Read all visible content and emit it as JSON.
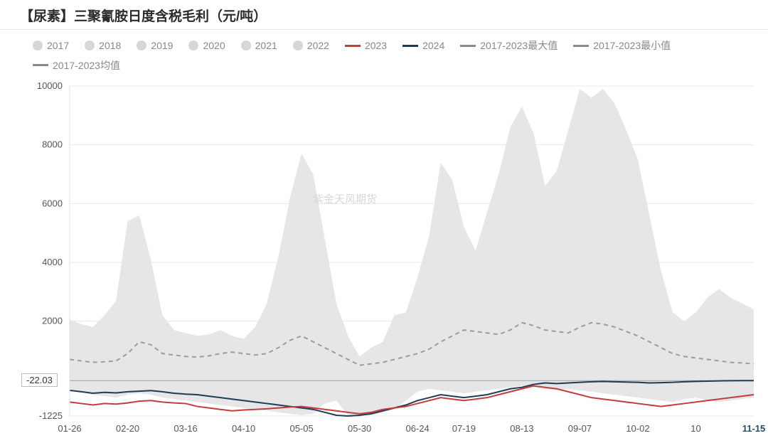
{
  "title": "【尿素】三聚氰胺日度含税毛利（元/吨）",
  "watermark": "紫金天风期货",
  "chart": {
    "type": "line",
    "background_color": "#ffffff",
    "grid_color": "#e9e9e9",
    "ylim": [
      -1225,
      10000
    ],
    "yticks": [
      -1225,
      2000,
      4000,
      6000,
      8000,
      10000
    ],
    "ytick_fontsize": 13,
    "ytick_color": "#555555",
    "xticks": [
      "01-26",
      "02-20",
      "03-16",
      "04-10",
      "05-05",
      "05-30",
      "06-24",
      "07-19",
      "08-13",
      "09-07",
      "10-02",
      "10",
      "11-15"
    ],
    "xtick_highlight_index": 12,
    "xtick_fontsize": 13,
    "xtick_color": "#555555",
    "n_points": 60,
    "value_badge": {
      "text": "-22.03",
      "y_value": -22.03
    },
    "legend": [
      {
        "label": "2017",
        "type": "dot",
        "color": "#d7d7d7"
      },
      {
        "label": "2018",
        "type": "dot",
        "color": "#d7d7d7"
      },
      {
        "label": "2019",
        "type": "dot",
        "color": "#d7d7d7"
      },
      {
        "label": "2020",
        "type": "dot",
        "color": "#d7d7d7"
      },
      {
        "label": "2021",
        "type": "dot",
        "color": "#d7d7d7"
      },
      {
        "label": "2022",
        "type": "dot",
        "color": "#d7d7d7"
      },
      {
        "label": "2023",
        "type": "line",
        "color": "#c63b3b"
      },
      {
        "label": "2024",
        "type": "line",
        "color": "#1f3b55"
      },
      {
        "label": "2017-2023最大值",
        "type": "line",
        "color": "#8a8a8a"
      },
      {
        "label": "2017-2023最小值",
        "type": "line",
        "color": "#8a8a8a"
      },
      {
        "label": "2017-2023均值",
        "type": "line",
        "color": "#8a8a8a"
      }
    ],
    "series": {
      "band_max": {
        "color": "#e6e6e6",
        "values": [
          2050,
          1900,
          1800,
          2200,
          2700,
          5400,
          5600,
          4100,
          2200,
          1700,
          1600,
          1500,
          1550,
          1700,
          1500,
          1400,
          1800,
          2600,
          4200,
          6200,
          7700,
          7000,
          4800,
          2600,
          1500,
          800,
          1100,
          1300,
          2200,
          2300,
          3500,
          4900,
          7400,
          6800,
          5200,
          4400,
          5700,
          7000,
          8600,
          9300,
          8400,
          6600,
          7100,
          8500,
          9900,
          9600,
          9900,
          9400,
          8500,
          7500,
          5600,
          3700,
          2300,
          2000,
          2300,
          2800,
          3100,
          2800,
          2600,
          2400
        ]
      },
      "band_min": {
        "color": "#e6e6e6",
        "values": [
          -300,
          -400,
          -500,
          -550,
          -600,
          -500,
          -450,
          -500,
          -600,
          -650,
          -700,
          -750,
          -800,
          -850,
          -900,
          -950,
          -1000,
          -1050,
          -1100,
          -1150,
          -1200,
          -1150,
          -800,
          -700,
          -1200,
          -1225,
          -1200,
          -1100,
          -1000,
          -700,
          -400,
          -300,
          -350,
          -400,
          -450,
          -400,
          -350,
          -300,
          -250,
          -200,
          -250,
          -300,
          -350,
          -300,
          -350,
          -400,
          -450,
          -500,
          -550,
          -600,
          -650,
          -700,
          -750,
          -650,
          -600,
          -700,
          -750,
          -700,
          -650,
          -600
        ]
      },
      "avg": {
        "color": "#9c9c9c",
        "dash": "6 5",
        "width": 2,
        "values": [
          700,
          650,
          600,
          620,
          650,
          900,
          1300,
          1200,
          900,
          850,
          800,
          780,
          820,
          900,
          950,
          900,
          850,
          900,
          1100,
          1350,
          1500,
          1300,
          1100,
          900,
          700,
          500,
          550,
          600,
          700,
          800,
          900,
          1050,
          1300,
          1500,
          1700,
          1650,
          1600,
          1550,
          1700,
          1950,
          1850,
          1700,
          1650,
          1600,
          1800,
          1950,
          1900,
          1800,
          1650,
          1500,
          1300,
          1100,
          900,
          800,
          750,
          700,
          650,
          600,
          580,
          550
        ]
      },
      "y2023": {
        "color": "#c63b3b",
        "width": 2,
        "values": [
          -750,
          -800,
          -850,
          -800,
          -820,
          -780,
          -720,
          -700,
          -750,
          -780,
          -800,
          -900,
          -950,
          -1000,
          -1050,
          -1020,
          -1000,
          -980,
          -950,
          -920,
          -900,
          -950,
          -1000,
          -1050,
          -1100,
          -1150,
          -1100,
          -1000,
          -950,
          -900,
          -800,
          -700,
          -600,
          -650,
          -700,
          -650,
          -600,
          -500,
          -400,
          -300,
          -200,
          -250,
          -300,
          -400,
          -500,
          -600,
          -650,
          -700,
          -750,
          -800,
          -850,
          -900,
          -850,
          -800,
          -750,
          -700,
          -650,
          -600,
          -550,
          -500
        ]
      },
      "y2024": {
        "color": "#1f3b55",
        "width": 2,
        "values": [
          -350,
          -400,
          -450,
          -420,
          -440,
          -400,
          -380,
          -360,
          -400,
          -450,
          -480,
          -500,
          -550,
          -600,
          -650,
          -700,
          -750,
          -800,
          -850,
          -900,
          -950,
          -1000,
          -1100,
          -1200,
          -1225,
          -1200,
          -1150,
          -1050,
          -950,
          -850,
          -700,
          -600,
          -500,
          -550,
          -600,
          -550,
          -500,
          -400,
          -300,
          -250,
          -150,
          -100,
          -120,
          -100,
          -80,
          -60,
          -50,
          -60,
          -70,
          -80,
          -100,
          -90,
          -80,
          -60,
          -50,
          -40,
          -30,
          -25,
          -22,
          -22
        ]
      }
    }
  }
}
